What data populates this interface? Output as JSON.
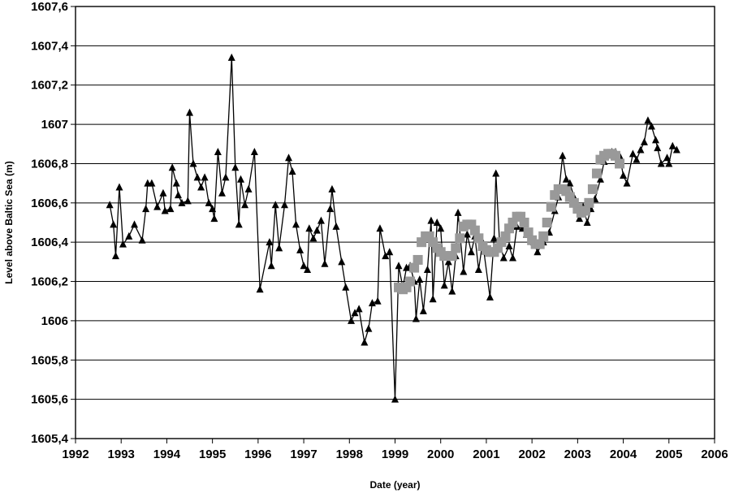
{
  "chart_data": {
    "type": "scatter",
    "title": "",
    "xlabel": "Date (year)",
    "ylabel": "Level above Baltic Sea (m)",
    "xlim": [
      1992,
      2006
    ],
    "ylim": [
      1605.4,
      1607.6
    ],
    "x_ticks": [
      "1992",
      "1993",
      "1994",
      "1995",
      "1996",
      "1997",
      "1998",
      "1999",
      "2000",
      "2001",
      "2002",
      "2003",
      "2004",
      "2005",
      "2006"
    ],
    "y_ticks": [
      "1605,4",
      "1605,6",
      "1605,8",
      "1606",
      "1606,2",
      "1606,4",
      "1606,6",
      "1606,8",
      "1607",
      "1607,2",
      "1607,4",
      "1607,6"
    ],
    "grid": "horizontal",
    "legend": "none",
    "series": [
      {
        "marker": "triangle",
        "color": "#000000",
        "line": true,
        "points": [
          [
            1992.75,
            1606.59
          ],
          [
            1992.83,
            1606.49
          ],
          [
            1992.88,
            1606.33
          ],
          [
            1992.96,
            1606.68
          ],
          [
            1993.04,
            1606.39
          ],
          [
            1993.17,
            1606.43
          ],
          [
            1993.29,
            1606.49
          ],
          [
            1993.46,
            1606.41
          ],
          [
            1993.54,
            1606.57
          ],
          [
            1993.58,
            1606.7
          ],
          [
            1993.67,
            1606.7
          ],
          [
            1993.79,
            1606.58
          ],
          [
            1993.92,
            1606.65
          ],
          [
            1993.96,
            1606.56
          ],
          [
            1994.08,
            1606.57
          ],
          [
            1994.12,
            1606.78
          ],
          [
            1994.21,
            1606.7
          ],
          [
            1994.25,
            1606.64
          ],
          [
            1994.33,
            1606.6
          ],
          [
            1994.46,
            1606.61
          ],
          [
            1994.5,
            1607.06
          ],
          [
            1994.58,
            1606.8
          ],
          [
            1994.67,
            1606.73
          ],
          [
            1994.75,
            1606.68
          ],
          [
            1994.83,
            1606.73
          ],
          [
            1994.92,
            1606.6
          ],
          [
            1995.0,
            1606.57
          ],
          [
            1995.04,
            1606.52
          ],
          [
            1995.12,
            1606.86
          ],
          [
            1995.21,
            1606.65
          ],
          [
            1995.29,
            1606.73
          ],
          [
            1995.42,
            1607.34
          ],
          [
            1995.5,
            1606.78
          ],
          [
            1995.58,
            1606.49
          ],
          [
            1995.62,
            1606.72
          ],
          [
            1995.71,
            1606.59
          ],
          [
            1995.79,
            1606.67
          ],
          [
            1995.92,
            1606.86
          ],
          [
            1996.04,
            1606.16
          ],
          [
            1996.25,
            1606.4
          ],
          [
            1996.29,
            1606.28
          ],
          [
            1996.38,
            1606.59
          ],
          [
            1996.46,
            1606.37
          ],
          [
            1996.58,
            1606.59
          ],
          [
            1996.67,
            1606.83
          ],
          [
            1996.75,
            1606.76
          ],
          [
            1996.83,
            1606.49
          ],
          [
            1996.92,
            1606.36
          ],
          [
            1997.0,
            1606.28
          ],
          [
            1997.08,
            1606.26
          ],
          [
            1997.12,
            1606.47
          ],
          [
            1997.21,
            1606.42
          ],
          [
            1997.29,
            1606.46
          ],
          [
            1997.38,
            1606.51
          ],
          [
            1997.46,
            1606.29
          ],
          [
            1997.58,
            1606.57
          ],
          [
            1997.62,
            1606.67
          ],
          [
            1997.71,
            1606.48
          ],
          [
            1997.83,
            1606.3
          ],
          [
            1997.92,
            1606.17
          ],
          [
            1998.04,
            1606.0
          ],
          [
            1998.12,
            1606.04
          ],
          [
            1998.21,
            1606.06
          ],
          [
            1998.33,
            1605.89
          ],
          [
            1998.42,
            1605.96
          ],
          [
            1998.5,
            1606.09
          ],
          [
            1998.62,
            1606.1
          ],
          [
            1998.67,
            1606.47
          ],
          [
            1998.79,
            1606.33
          ],
          [
            1998.88,
            1606.35
          ],
          [
            1999.0,
            1605.6
          ],
          [
            1999.08,
            1606.28
          ],
          [
            1999.17,
            1606.17
          ],
          [
            1999.25,
            1606.27
          ],
          [
            1999.33,
            1606.28
          ],
          [
            1999.42,
            1606.2
          ],
          [
            1999.46,
            1606.01
          ],
          [
            1999.54,
            1606.21
          ],
          [
            1999.62,
            1606.05
          ],
          [
            1999.71,
            1606.26
          ],
          [
            1999.79,
            1606.51
          ],
          [
            1999.83,
            1606.11
          ],
          [
            1999.92,
            1606.5
          ],
          [
            2000.0,
            1606.47
          ],
          [
            2000.08,
            1606.18
          ],
          [
            2000.17,
            1606.3
          ],
          [
            2000.25,
            1606.15
          ],
          [
            2000.33,
            1606.33
          ],
          [
            2000.38,
            1606.55
          ],
          [
            2000.5,
            1606.25
          ],
          [
            2000.58,
            1606.44
          ],
          [
            2000.67,
            1606.35
          ],
          [
            2000.75,
            1606.43
          ],
          [
            2000.83,
            1606.26
          ],
          [
            2000.92,
            1606.4
          ],
          [
            2001.08,
            1606.12
          ],
          [
            2001.17,
            1606.42
          ],
          [
            2001.21,
            1606.75
          ],
          [
            2001.29,
            1606.4
          ],
          [
            2001.38,
            1606.32
          ],
          [
            2001.5,
            1606.38
          ],
          [
            2001.58,
            1606.32
          ],
          [
            2001.67,
            1606.48
          ],
          [
            2001.79,
            1606.47
          ],
          [
            2001.88,
            1606.44
          ],
          [
            2002.04,
            1606.4
          ],
          [
            2002.12,
            1606.35
          ],
          [
            2002.25,
            1606.4
          ],
          [
            2002.38,
            1606.45
          ],
          [
            2002.5,
            1606.56
          ],
          [
            2002.58,
            1606.63
          ],
          [
            2002.67,
            1606.84
          ],
          [
            2002.75,
            1606.72
          ],
          [
            2002.83,
            1606.7
          ],
          [
            2002.92,
            1606.63
          ],
          [
            2003.04,
            1606.52
          ],
          [
            2003.12,
            1606.58
          ],
          [
            2003.21,
            1606.5
          ],
          [
            2003.29,
            1606.57
          ],
          [
            2003.38,
            1606.62
          ],
          [
            2003.5,
            1606.72
          ],
          [
            2003.58,
            1606.81
          ],
          [
            2003.67,
            1606.85
          ],
          [
            2003.75,
            1606.86
          ],
          [
            2003.83,
            1606.86
          ],
          [
            2003.92,
            1606.84
          ],
          [
            2004.0,
            1606.74
          ],
          [
            2004.08,
            1606.7
          ],
          [
            2004.21,
            1606.85
          ],
          [
            2004.29,
            1606.82
          ],
          [
            2004.38,
            1606.87
          ],
          [
            2004.46,
            1606.91
          ],
          [
            2004.54,
            1607.02
          ],
          [
            2004.62,
            1606.99
          ],
          [
            2004.71,
            1606.92
          ],
          [
            2004.75,
            1606.88
          ],
          [
            2004.83,
            1606.8
          ],
          [
            2004.96,
            1606.83
          ],
          [
            2005.0,
            1606.8
          ],
          [
            2005.08,
            1606.89
          ],
          [
            2005.17,
            1606.87
          ]
        ]
      },
      {
        "marker": "square",
        "color": "#999999",
        "line": false,
        "points": [
          [
            1999.08,
            1606.17
          ],
          [
            1999.17,
            1606.16
          ],
          [
            1999.25,
            1606.17
          ],
          [
            1999.33,
            1606.2
          ],
          [
            1999.42,
            1606.27
          ],
          [
            1999.5,
            1606.31
          ],
          [
            1999.58,
            1606.4
          ],
          [
            1999.67,
            1606.43
          ],
          [
            1999.75,
            1606.43
          ],
          [
            1999.83,
            1606.4
          ],
          [
            1999.92,
            1606.37
          ],
          [
            2000.0,
            1606.35
          ],
          [
            2000.08,
            1606.33
          ],
          [
            2000.17,
            1606.33
          ],
          [
            2000.25,
            1606.33
          ],
          [
            2000.33,
            1606.37
          ],
          [
            2000.42,
            1606.42
          ],
          [
            2000.5,
            1606.48
          ],
          [
            2000.58,
            1606.49
          ],
          [
            2000.67,
            1606.49
          ],
          [
            2000.75,
            1606.46
          ],
          [
            2000.83,
            1606.42
          ],
          [
            2000.92,
            1606.38
          ],
          [
            2001.0,
            1606.36
          ],
          [
            2001.08,
            1606.35
          ],
          [
            2001.17,
            1606.35
          ],
          [
            2001.25,
            1606.37
          ],
          [
            2001.33,
            1606.4
          ],
          [
            2001.42,
            1606.43
          ],
          [
            2001.5,
            1606.47
          ],
          [
            2001.58,
            1606.5
          ],
          [
            2001.67,
            1606.53
          ],
          [
            2001.75,
            1606.53
          ],
          [
            2001.83,
            1606.5
          ],
          [
            2001.92,
            1606.45
          ],
          [
            2002.0,
            1606.41
          ],
          [
            2002.08,
            1606.39
          ],
          [
            2002.17,
            1606.39
          ],
          [
            2002.25,
            1606.43
          ],
          [
            2002.33,
            1606.5
          ],
          [
            2002.42,
            1606.58
          ],
          [
            2002.5,
            1606.64
          ],
          [
            2002.58,
            1606.67
          ],
          [
            2002.67,
            1606.67
          ],
          [
            2002.75,
            1606.66
          ],
          [
            2002.83,
            1606.63
          ],
          [
            2002.92,
            1606.6
          ],
          [
            2003.0,
            1606.57
          ],
          [
            2003.08,
            1606.55
          ],
          [
            2003.17,
            1606.56
          ],
          [
            2003.25,
            1606.6
          ],
          [
            2003.33,
            1606.67
          ],
          [
            2003.42,
            1606.75
          ],
          [
            2003.5,
            1606.82
          ],
          [
            2003.58,
            1606.84
          ],
          [
            2003.67,
            1606.85
          ],
          [
            2003.75,
            1606.85
          ],
          [
            2003.83,
            1606.84
          ],
          [
            2003.92,
            1606.8
          ]
        ]
      }
    ]
  }
}
